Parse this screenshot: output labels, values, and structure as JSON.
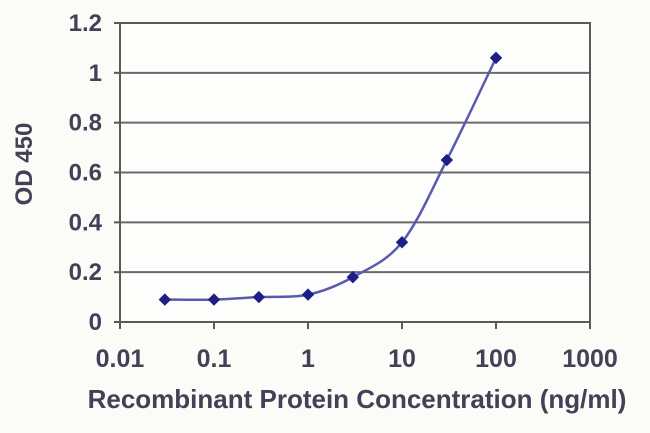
{
  "figure": {
    "background": "#fbfbf8"
  },
  "chart_data": {
    "type": "line",
    "title": "",
    "xlabel": "Recombinant Protein Concentration (ng/ml)",
    "ylabel": "OD 450",
    "x_scale": "log10",
    "xlim": [
      0.01,
      1000
    ],
    "ylim": [
      0,
      1.2
    ],
    "x_tick_values": [
      0.01,
      0.1,
      1,
      10,
      100,
      1000
    ],
    "x_tick_labels": [
      "0.01",
      "0.1",
      "1",
      "10",
      "100",
      "1000"
    ],
    "y_tick_values": [
      0,
      0.2,
      0.4,
      0.6,
      0.8,
      1,
      1.2
    ],
    "y_tick_labels": [
      "0",
      "0.2",
      "0.4",
      "0.6",
      "0.8",
      "1",
      "1.2"
    ],
    "grid": "horizontal-only",
    "legend_position": "none",
    "series": [
      {
        "marker": "diamond",
        "line_style": "smooth",
        "x": [
          0.03,
          0.1,
          0.3,
          1,
          3,
          10,
          30,
          100
        ],
        "y": [
          0.09,
          0.09,
          0.1,
          0.11,
          0.18,
          0.32,
          0.65,
          1.06
        ],
        "line_color": "#5a5aae",
        "marker_color": "#1e1e87"
      }
    ],
    "colors": {
      "text": "#414157",
      "grid": "#6a6a6a",
      "frame": "#595959",
      "plot_background": "#fdfdfb",
      "figure_background": "#fbfbf8"
    }
  }
}
